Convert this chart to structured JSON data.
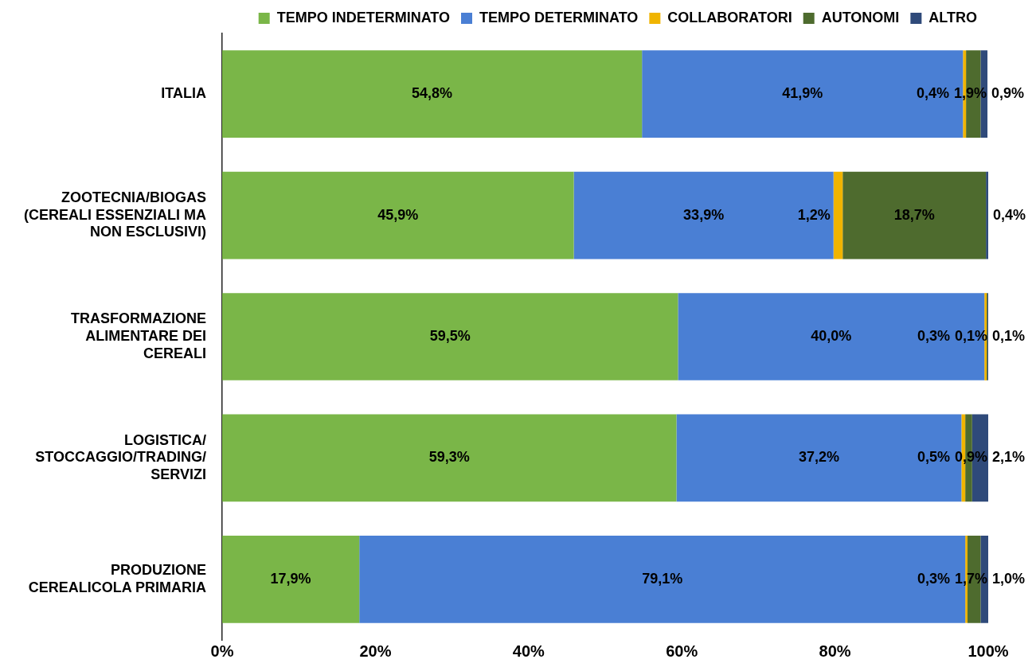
{
  "chart_data": {
    "type": "bar",
    "orientation": "horizontal",
    "stacked": true,
    "legend": "top",
    "grid": false,
    "categories": [
      "ITALIA",
      "ZOOTECNIA/BIOGAS (CEREALI ESSENZIALI MA NON ESCLUSIVI)",
      "TRASFORMAZIONE ALIMENTARE DEI CEREALI",
      "LOGISTICA/STOCCAGGIO/TRADING/SERVIZI",
      "PRODUZIONE CEREALICOLA PRIMARIA"
    ],
    "xlim": [
      0,
      100
    ],
    "xticks": [
      {
        "value": 0,
        "label": "0%"
      },
      {
        "value": 20,
        "label": "20%"
      },
      {
        "value": 40,
        "label": "40%"
      },
      {
        "value": 60,
        "label": "60%"
      },
      {
        "value": 80,
        "label": "80%"
      },
      {
        "value": 100,
        "label": "100%"
      }
    ],
    "series": [
      {
        "name": "TEMPO INDETERMINATO",
        "color": "#7ab648",
        "values": [
          54.8,
          45.9,
          59.5,
          59.3,
          17.9
        ],
        "value_labels": [
          "54,8%",
          "45,9%",
          "59,5%",
          "59,3%",
          "17,9%"
        ]
      },
      {
        "name": "TEMPO DETERMINATO",
        "color": "#4a7fd4",
        "values": [
          41.9,
          33.9,
          40.0,
          37.2,
          79.1
        ],
        "value_labels": [
          "41,9%",
          "33,9%",
          "40,0%",
          "37,2%",
          "79,1%"
        ]
      },
      {
        "name": "COLLABORATORI",
        "color": "#f0b400",
        "values": [
          0.4,
          1.2,
          0.3,
          0.5,
          0.3
        ],
        "value_labels": [
          "0,4%",
          "1,2%",
          "0,3%",
          "0,5%",
          "0,3%"
        ]
      },
      {
        "name": "AUTONOMI",
        "color": "#4e6b2e",
        "values": [
          1.9,
          18.7,
          0.1,
          0.9,
          1.7
        ],
        "value_labels": [
          "1,9%",
          "18,7%",
          "0,1%",
          "0,9%",
          "1,7%"
        ]
      },
      {
        "name": "ALTRO",
        "color": "#2f4a7a",
        "values": [
          0.9,
          0.4,
          0.1,
          2.1,
          1.0
        ],
        "value_labels": [
          "0,9%",
          "0,4%",
          "0,1%",
          "2,1%",
          "1,0%"
        ]
      }
    ]
  }
}
